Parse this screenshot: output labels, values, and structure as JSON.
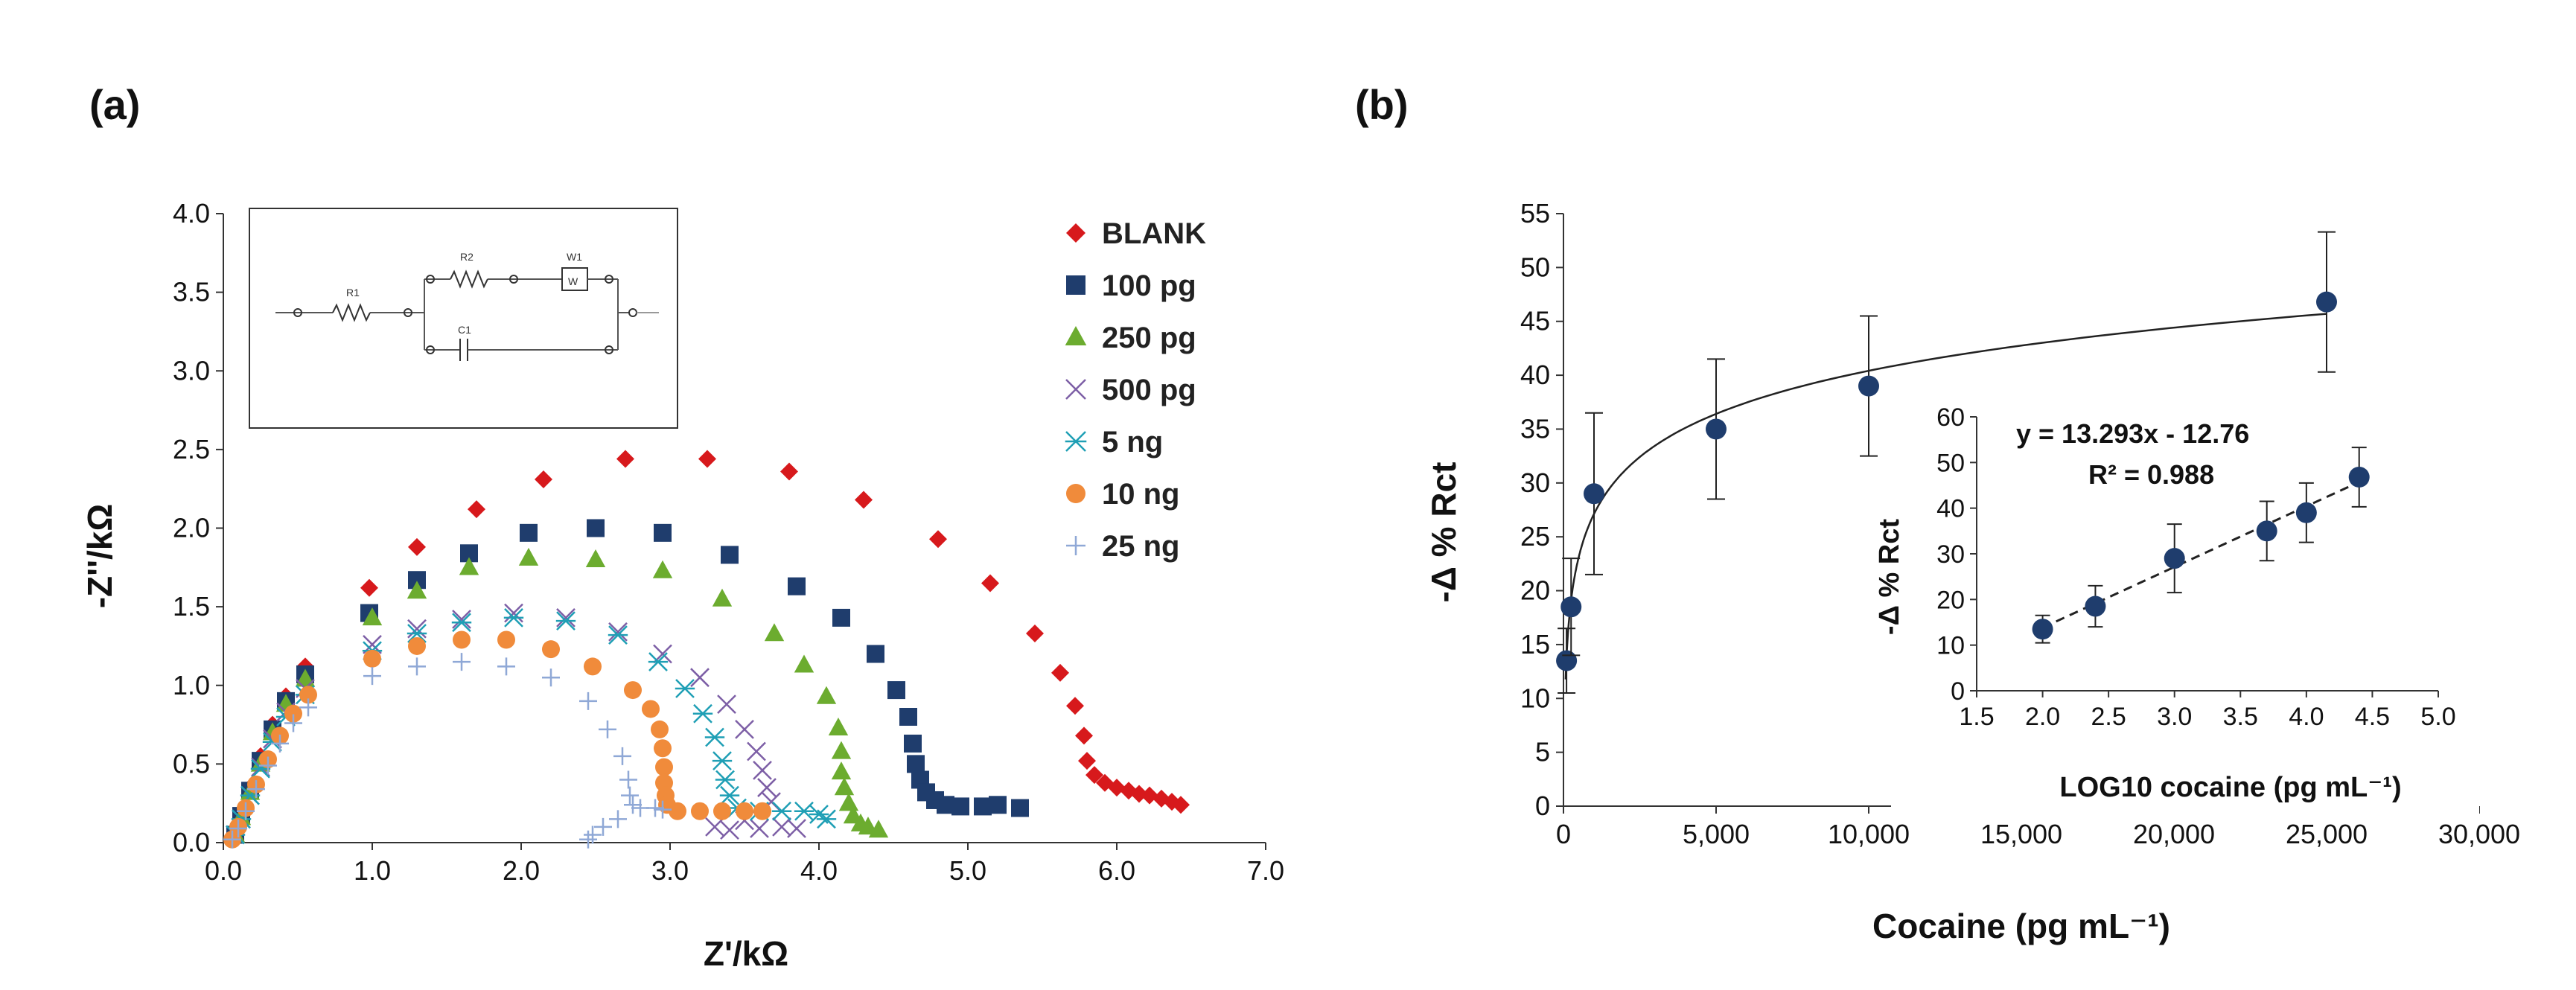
{
  "chart_data": [
    {
      "panel": "(a)",
      "type": "scatter",
      "title": "",
      "xlabel": "Z'/kΩ",
      "ylabel": "-Z''/kΩ",
      "xlim": [
        0,
        7
      ],
      "ylim": [
        0,
        4
      ],
      "xticks": [
        "0.0",
        "1.0",
        "2.0",
        "3.0",
        "4.0",
        "5.0",
        "6.0",
        "7.0"
      ],
      "yticks": [
        "0.0",
        "0.5",
        "1.0",
        "1.5",
        "2.0",
        "2.5",
        "3.0",
        "3.5",
        "4.0"
      ],
      "inset": {
        "type": "equivalent-circuit",
        "labels": [
          "R1",
          "R2",
          "W1",
          "W",
          "C1"
        ]
      },
      "series": [
        {
          "name": "BLANK",
          "marker": "diamond",
          "color": "#d7191c",
          "points": [
            [
              0.08,
              0.05
            ],
            [
              0.12,
              0.18
            ],
            [
              0.18,
              0.35
            ],
            [
              0.25,
              0.55
            ],
            [
              0.33,
              0.75
            ],
            [
              0.42,
              0.93
            ],
            [
              0.55,
              1.12
            ],
            [
              0.98,
              1.62
            ],
            [
              1.3,
              1.88
            ],
            [
              1.7,
              2.12
            ],
            [
              2.15,
              2.31
            ],
            [
              2.7,
              2.44
            ],
            [
              3.25,
              2.44
            ],
            [
              3.8,
              2.36
            ],
            [
              4.3,
              2.18
            ],
            [
              4.8,
              1.93
            ],
            [
              5.15,
              1.65
            ],
            [
              5.45,
              1.33
            ],
            [
              5.62,
              1.08
            ],
            [
              5.72,
              0.87
            ],
            [
              5.78,
              0.68
            ],
            [
              5.8,
              0.52
            ],
            [
              5.85,
              0.43
            ],
            [
              5.92,
              0.38
            ],
            [
              6.0,
              0.35
            ],
            [
              6.08,
              0.33
            ],
            [
              6.15,
              0.31
            ],
            [
              6.22,
              0.3
            ],
            [
              6.3,
              0.28
            ],
            [
              6.37,
              0.26
            ],
            [
              6.43,
              0.24
            ]
          ]
        },
        {
          "name": "100 pg",
          "marker": "square",
          "color": "#1f3d6d",
          "points": [
            [
              0.08,
              0.05
            ],
            [
              0.12,
              0.17
            ],
            [
              0.18,
              0.33
            ],
            [
              0.25,
              0.52
            ],
            [
              0.33,
              0.72
            ],
            [
              0.42,
              0.9
            ],
            [
              0.55,
              1.07
            ],
            [
              0.98,
              1.46
            ],
            [
              1.3,
              1.67
            ],
            [
              1.65,
              1.84
            ],
            [
              2.05,
              1.97
            ],
            [
              2.5,
              2.0
            ],
            [
              2.95,
              1.97
            ],
            [
              3.4,
              1.83
            ],
            [
              3.85,
              1.63
            ],
            [
              4.15,
              1.43
            ],
            [
              4.38,
              1.2
            ],
            [
              4.52,
              0.97
            ],
            [
              4.6,
              0.8
            ],
            [
              4.63,
              0.63
            ],
            [
              4.65,
              0.5
            ],
            [
              4.68,
              0.4
            ],
            [
              4.72,
              0.32
            ],
            [
              4.78,
              0.27
            ],
            [
              4.85,
              0.24
            ],
            [
              4.95,
              0.23
            ],
            [
              5.1,
              0.23
            ],
            [
              5.2,
              0.24
            ],
            [
              5.35,
              0.22
            ]
          ]
        },
        {
          "name": "250 pg",
          "marker": "triangle",
          "color": "#6cac2f",
          "points": [
            [
              0.08,
              0.05
            ],
            [
              0.12,
              0.16
            ],
            [
              0.18,
              0.32
            ],
            [
              0.25,
              0.5
            ],
            [
              0.33,
              0.7
            ],
            [
              0.42,
              0.88
            ],
            [
              0.55,
              1.04
            ],
            [
              1.0,
              1.43
            ],
            [
              1.3,
              1.6
            ],
            [
              1.65,
              1.75
            ],
            [
              2.05,
              1.81
            ],
            [
              2.5,
              1.8
            ],
            [
              2.95,
              1.73
            ],
            [
              3.35,
              1.55
            ],
            [
              3.7,
              1.33
            ],
            [
              3.9,
              1.13
            ],
            [
              4.05,
              0.93
            ],
            [
              4.13,
              0.73
            ],
            [
              4.15,
              0.58
            ],
            [
              4.15,
              0.45
            ],
            [
              4.17,
              0.35
            ],
            [
              4.2,
              0.25
            ],
            [
              4.23,
              0.17
            ],
            [
              4.28,
              0.12
            ],
            [
              4.33,
              0.1
            ],
            [
              4.4,
              0.08
            ]
          ]
        },
        {
          "name": "500 pg",
          "marker": "x",
          "color": "#7d5fa6",
          "points": [
            [
              0.08,
              0.05
            ],
            [
              0.12,
              0.15
            ],
            [
              0.18,
              0.3
            ],
            [
              0.25,
              0.48
            ],
            [
              0.33,
              0.66
            ],
            [
              0.42,
              0.83
            ],
            [
              0.55,
              0.98
            ],
            [
              1.0,
              1.26
            ],
            [
              1.3,
              1.36
            ],
            [
              1.6,
              1.42
            ],
            [
              1.95,
              1.46
            ],
            [
              2.3,
              1.43
            ],
            [
              2.65,
              1.34
            ],
            [
              2.95,
              1.2
            ],
            [
              3.2,
              1.05
            ],
            [
              3.38,
              0.88
            ],
            [
              3.5,
              0.72
            ],
            [
              3.58,
              0.58
            ],
            [
              3.62,
              0.46
            ],
            [
              3.65,
              0.35
            ],
            [
              3.68,
              0.26
            ],
            [
              3.5,
              0.14
            ],
            [
              3.3,
              0.1
            ],
            [
              3.4,
              0.08
            ],
            [
              3.6,
              0.09
            ],
            [
              3.75,
              0.1
            ],
            [
              3.85,
              0.09
            ]
          ]
        },
        {
          "name": "5 ng",
          "marker": "asterisk",
          "color": "#1f9fb5",
          "points": [
            [
              0.08,
              0.05
            ],
            [
              0.12,
              0.15
            ],
            [
              0.18,
              0.3
            ],
            [
              0.25,
              0.47
            ],
            [
              0.33,
              0.64
            ],
            [
              0.42,
              0.8
            ],
            [
              0.55,
              0.94
            ],
            [
              1.0,
              1.22
            ],
            [
              1.3,
              1.33
            ],
            [
              1.6,
              1.4
            ],
            [
              1.95,
              1.43
            ],
            [
              2.3,
              1.41
            ],
            [
              2.65,
              1.32
            ],
            [
              2.92,
              1.15
            ],
            [
              3.1,
              0.98
            ],
            [
              3.22,
              0.82
            ],
            [
              3.3,
              0.67
            ],
            [
              3.35,
              0.52
            ],
            [
              3.37,
              0.4
            ],
            [
              3.4,
              0.3
            ],
            [
              3.45,
              0.22
            ],
            [
              3.6,
              0.2
            ],
            [
              3.75,
              0.2
            ],
            [
              3.9,
              0.2
            ],
            [
              4.0,
              0.18
            ],
            [
              4.05,
              0.15
            ]
          ]
        },
        {
          "name": "10 ng",
          "marker": "circle",
          "color": "#f08b3b",
          "points": [
            [
              0.06,
              0.02
            ],
            [
              0.1,
              0.1
            ],
            [
              0.15,
              0.22
            ],
            [
              0.22,
              0.37
            ],
            [
              0.3,
              0.53
            ],
            [
              0.38,
              0.68
            ],
            [
              0.47,
              0.82
            ],
            [
              0.57,
              0.94
            ],
            [
              1.0,
              1.17
            ],
            [
              1.3,
              1.25
            ],
            [
              1.6,
              1.29
            ],
            [
              1.9,
              1.29
            ],
            [
              2.2,
              1.23
            ],
            [
              2.48,
              1.12
            ],
            [
              2.75,
              0.97
            ],
            [
              2.87,
              0.85
            ],
            [
              2.93,
              0.72
            ],
            [
              2.95,
              0.6
            ],
            [
              2.96,
              0.48
            ],
            [
              2.96,
              0.38
            ],
            [
              2.97,
              0.3
            ],
            [
              2.98,
              0.24
            ],
            [
              3.05,
              0.2
            ],
            [
              3.2,
              0.2
            ],
            [
              3.35,
              0.2
            ],
            [
              3.5,
              0.2
            ],
            [
              3.62,
              0.2
            ]
          ]
        },
        {
          "name": "25 ng",
          "marker": "plus",
          "color": "#8fa8d6",
          "points": [
            [
              0.06,
              0.02
            ],
            [
              0.1,
              0.09
            ],
            [
              0.15,
              0.2
            ],
            [
              0.22,
              0.34
            ],
            [
              0.3,
              0.49
            ],
            [
              0.38,
              0.63
            ],
            [
              0.47,
              0.76
            ],
            [
              0.57,
              0.86
            ],
            [
              1.0,
              1.06
            ],
            [
              1.3,
              1.12
            ],
            [
              1.6,
              1.15
            ],
            [
              1.9,
              1.12
            ],
            [
              2.2,
              1.05
            ],
            [
              2.45,
              0.9
            ],
            [
              2.58,
              0.72
            ],
            [
              2.68,
              0.55
            ],
            [
              2.72,
              0.4
            ],
            [
              2.73,
              0.3
            ],
            [
              2.75,
              0.24
            ],
            [
              2.8,
              0.22
            ],
            [
              2.9,
              0.22
            ],
            [
              2.95,
              0.21
            ],
            [
              2.65,
              0.15
            ],
            [
              2.55,
              0.1
            ],
            [
              2.48,
              0.05
            ],
            [
              2.45,
              0.02
            ]
          ]
        }
      ],
      "legend_position": "right"
    },
    {
      "panel": "(b)",
      "type": "scatter",
      "title": "",
      "xlabel": "Cocaine (pg mL⁻¹)",
      "ylabel": "-Δ % Rct",
      "xlim": [
        0,
        30000
      ],
      "ylim": [
        0,
        55
      ],
      "xticks": [
        "0",
        "5,000",
        "10,000",
        "15,000",
        "20,000",
        "25,000",
        "30,000"
      ],
      "yticks": [
        "0",
        "5",
        "10",
        "15",
        "20",
        "25",
        "30",
        "35",
        "40",
        "45",
        "50",
        "55"
      ],
      "points": [
        {
          "x": 100,
          "y": 13.5,
          "err": 3
        },
        {
          "x": 250,
          "y": 18.5,
          "err": 4.5
        },
        {
          "x": 1000,
          "y": 29,
          "err": 7.5
        },
        {
          "x": 5000,
          "y": 35,
          "err": 6.5
        },
        {
          "x": 10000,
          "y": 39,
          "err": 6.5
        },
        {
          "x": 25000,
          "y": 46.8,
          "err": 6.5
        }
      ],
      "fit": {
        "type": "logarithmic",
        "slope": 13.293,
        "intercept": -12.76
      },
      "color": "#1f3d6d",
      "inset": {
        "type": "scatter",
        "xlabel": "LOG10 cocaine (pg mL⁻¹)",
        "ylabel": "-Δ % Rct",
        "xlim": [
          1.5,
          5.0
        ],
        "ylim": [
          0,
          60
        ],
        "xticks": [
          "1.5",
          "2.0",
          "2.5",
          "3.0",
          "3.5",
          "4.0",
          "4.5",
          "5.0"
        ],
        "yticks": [
          "0",
          "10",
          "20",
          "30",
          "40",
          "50",
          "60"
        ],
        "points": [
          {
            "x": 2.0,
            "y": 13.5,
            "err": 3
          },
          {
            "x": 2.4,
            "y": 18.5,
            "err": 4.5
          },
          {
            "x": 3.0,
            "y": 29,
            "err": 7.5
          },
          {
            "x": 3.7,
            "y": 35,
            "err": 6.5
          },
          {
            "x": 4.0,
            "y": 39,
            "err": 6.5
          },
          {
            "x": 4.4,
            "y": 46.8,
            "err": 6.5
          }
        ],
        "trendline": {
          "x0": 2.0,
          "x1": 4.4,
          "slope": 13.293,
          "intercept": -12.76
        },
        "equation": "y = 13.293x - 12.76",
        "r2": "R² = 0.988",
        "r2_color": "#2e4f8f"
      }
    }
  ]
}
